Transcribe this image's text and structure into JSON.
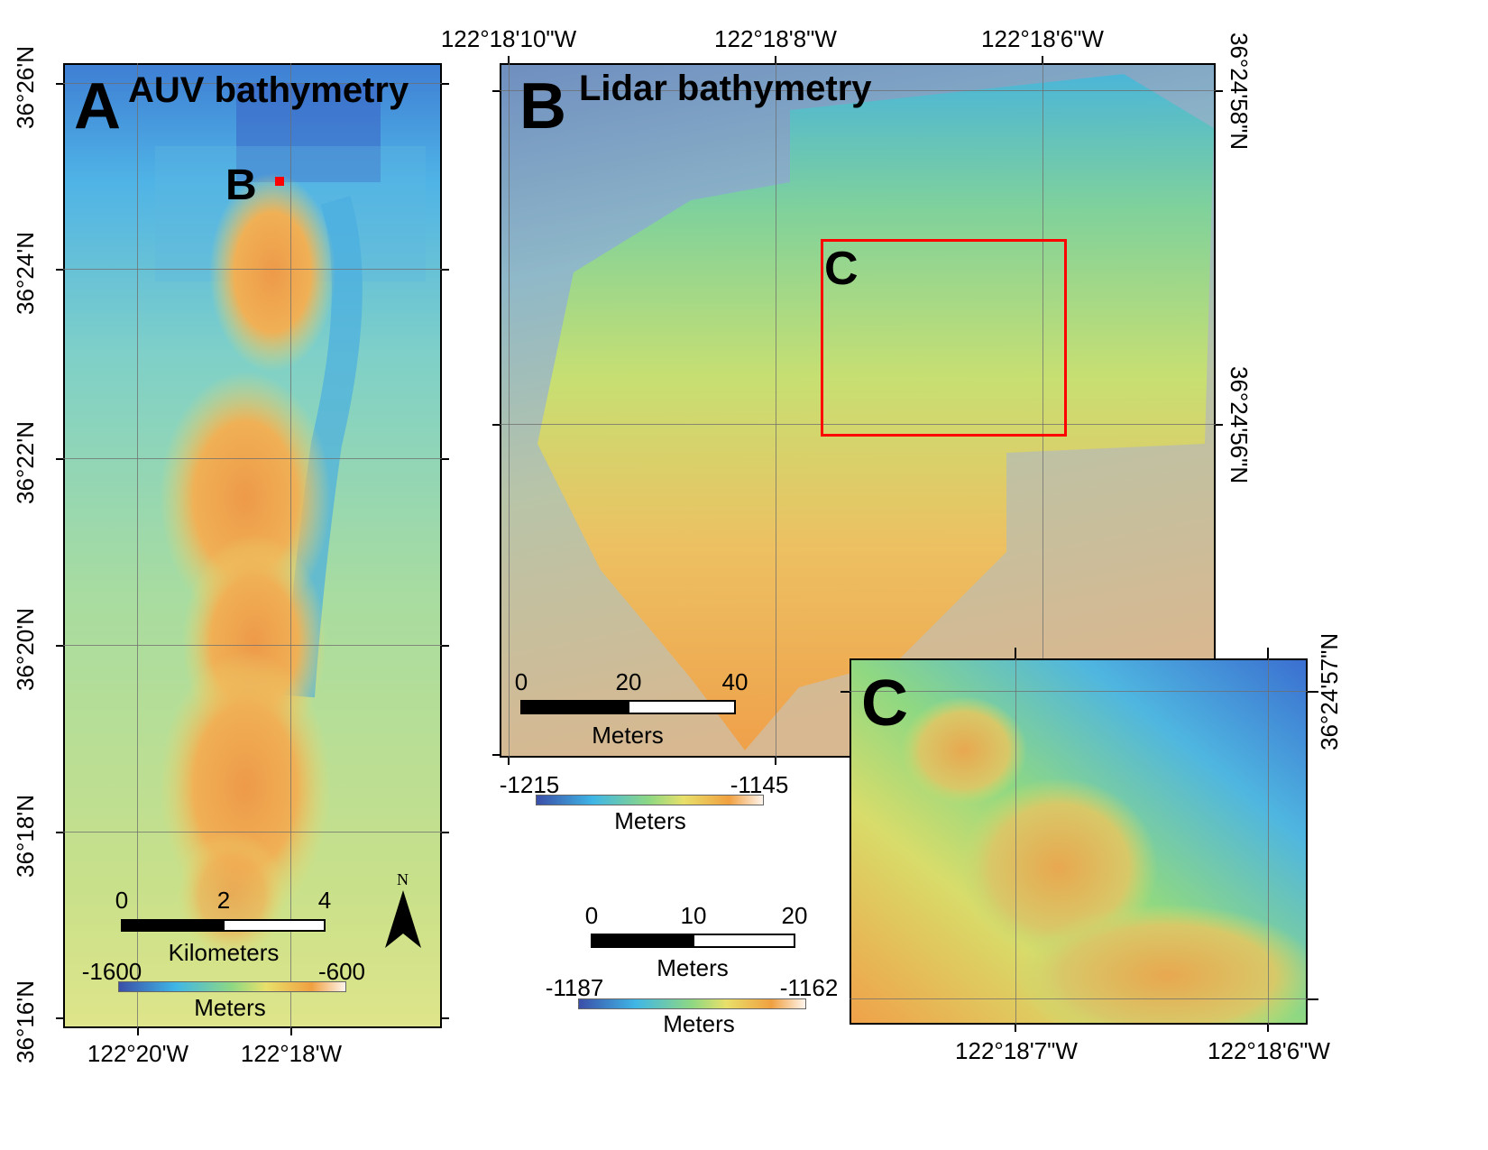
{
  "panel_a": {
    "letter": "A",
    "title": "AUV bathymetry",
    "marker_label": "B",
    "lat_labels": [
      "36°26'N",
      "36°24'N",
      "36°22'N",
      "36°20'N",
      "36°18'N",
      "36°16'N"
    ],
    "lon_labels": [
      "122°20'W",
      "122°18'W"
    ],
    "scale": {
      "ticks": [
        "0",
        "2",
        "4"
      ],
      "unit": "Kilometers"
    },
    "north_label": "N",
    "colorbar": {
      "min": "-1600",
      "max": "-600",
      "unit": "Meters"
    }
  },
  "panel_b": {
    "letter": "B",
    "title": "Lidar bathymetry",
    "inset_label": "C",
    "lon_labels": [
      "122°18'10\"W",
      "122°18'8\"W",
      "122°18'6\"W"
    ],
    "lat_labels": [
      "36°24'58\"N",
      "36°24'56\"N"
    ],
    "scale": {
      "ticks": [
        "0",
        "20",
        "40"
      ],
      "unit": "Meters"
    },
    "colorbar": {
      "min": "-1215",
      "max": "-1145",
      "unit": "Meters"
    }
  },
  "panel_c": {
    "letter": "C",
    "lon_labels": [
      "122°18'7\"W",
      "122°18'6\"W"
    ],
    "lat_labels": [
      "36°24'57\"N"
    ],
    "scale": {
      "ticks": [
        "0",
        "10",
        "20"
      ],
      "unit": "Meters"
    },
    "colorbar": {
      "min": "-1187",
      "max": "-1162",
      "unit": "Meters"
    }
  },
  "colors": {
    "deep": "#3b4fa8",
    "mid_blue": "#3fb6e6",
    "green": "#8fd882",
    "yellow": "#e8e06a",
    "orange": "#f0a040",
    "shallow": "#fff4ec",
    "highlight": "#ff0000"
  }
}
